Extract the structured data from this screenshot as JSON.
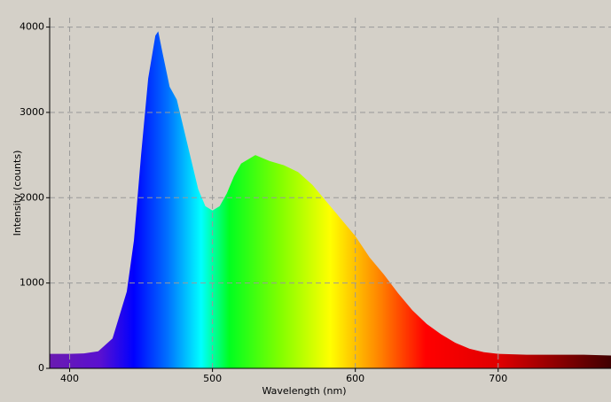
{
  "chart_data": {
    "type": "area",
    "x_label": "Wavelength (nm)",
    "y_label": "Intensity (counts)",
    "x": [
      386,
      400,
      410,
      420,
      430,
      440,
      445,
      450,
      455,
      460,
      462,
      465,
      470,
      475,
      480,
      485,
      490,
      495,
      500,
      505,
      510,
      515,
      520,
      530,
      540,
      550,
      560,
      570,
      580,
      590,
      600,
      610,
      620,
      630,
      640,
      650,
      660,
      670,
      680,
      690,
      700,
      720,
      740,
      760,
      779
    ],
    "values": [
      170,
      170,
      175,
      200,
      350,
      900,
      1500,
      2500,
      3400,
      3900,
      3950,
      3700,
      3300,
      3150,
      2800,
      2450,
      2100,
      1900,
      1850,
      1900,
      2050,
      2250,
      2400,
      2500,
      2430,
      2380,
      2300,
      2150,
      1950,
      1750,
      1550,
      1300,
      1100,
      880,
      680,
      520,
      400,
      300,
      230,
      190,
      170,
      160,
      160,
      160,
      150
    ],
    "xlim": [
      386,
      779
    ],
    "ylim": [
      0,
      4110
    ],
    "xticks": [
      400,
      500,
      600,
      700
    ],
    "yticks": [
      0,
      1000,
      2000,
      3000,
      4000
    ],
    "grid": true
  }
}
